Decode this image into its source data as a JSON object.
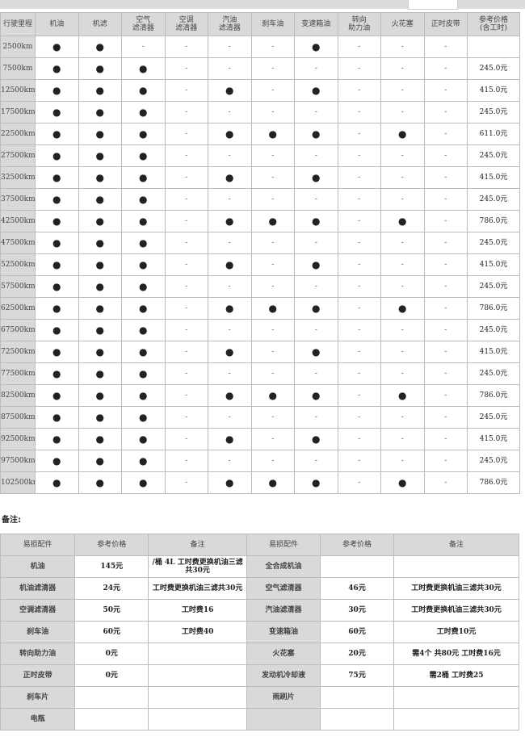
{
  "schedule": {
    "headers": [
      "行驶里程",
      "机油",
      "机滤",
      "空气\n滤清器",
      "空调\n滤清器",
      "汽油\n滤清器",
      "刹车油",
      "变速箱油",
      "转向\n助力油",
      "火花塞",
      "正时皮带",
      "参考价格\n(含工时)"
    ],
    "marks": {
      "yes": "●",
      "no": "-"
    },
    "rows": [
      {
        "km": "2500km",
        "items": [
          1,
          1,
          0,
          0,
          0,
          0,
          1,
          0,
          0,
          0
        ],
        "price": ""
      },
      {
        "km": "7500km",
        "items": [
          1,
          1,
          1,
          0,
          0,
          0,
          0,
          0,
          0,
          0
        ],
        "price": "245.0元"
      },
      {
        "km": "12500km",
        "items": [
          1,
          1,
          1,
          0,
          1,
          0,
          1,
          0,
          0,
          0
        ],
        "price": "415.0元"
      },
      {
        "km": "17500km",
        "items": [
          1,
          1,
          1,
          0,
          0,
          0,
          0,
          0,
          0,
          0
        ],
        "price": "245.0元"
      },
      {
        "km": "22500km",
        "items": [
          1,
          1,
          1,
          0,
          1,
          1,
          1,
          0,
          1,
          0
        ],
        "price": "611.0元"
      },
      {
        "km": "27500km",
        "items": [
          1,
          1,
          1,
          0,
          0,
          0,
          0,
          0,
          0,
          0
        ],
        "price": "245.0元"
      },
      {
        "km": "32500km",
        "items": [
          1,
          1,
          1,
          0,
          1,
          0,
          1,
          0,
          0,
          0
        ],
        "price": "415.0元"
      },
      {
        "km": "37500km",
        "items": [
          1,
          1,
          1,
          0,
          0,
          0,
          0,
          0,
          0,
          0
        ],
        "price": "245.0元"
      },
      {
        "km": "42500km",
        "items": [
          1,
          1,
          1,
          0,
          1,
          1,
          1,
          0,
          1,
          0
        ],
        "price": "786.0元"
      },
      {
        "km": "47500km",
        "items": [
          1,
          1,
          1,
          0,
          0,
          0,
          0,
          0,
          0,
          0
        ],
        "price": "245.0元"
      },
      {
        "km": "52500km",
        "items": [
          1,
          1,
          1,
          0,
          1,
          0,
          1,
          0,
          0,
          0
        ],
        "price": "415.0元"
      },
      {
        "km": "57500km",
        "items": [
          1,
          1,
          1,
          0,
          0,
          0,
          0,
          0,
          0,
          0
        ],
        "price": "245.0元"
      },
      {
        "km": "62500km",
        "items": [
          1,
          1,
          1,
          0,
          1,
          1,
          1,
          0,
          1,
          0
        ],
        "price": "786.0元"
      },
      {
        "km": "67500km",
        "items": [
          1,
          1,
          1,
          0,
          0,
          0,
          0,
          0,
          0,
          0
        ],
        "price": "245.0元"
      },
      {
        "km": "72500km",
        "items": [
          1,
          1,
          1,
          0,
          1,
          0,
          1,
          0,
          0,
          0
        ],
        "price": "415.0元"
      },
      {
        "km": "77500km",
        "items": [
          1,
          1,
          1,
          0,
          0,
          0,
          0,
          0,
          0,
          0
        ],
        "price": "245.0元"
      },
      {
        "km": "82500km",
        "items": [
          1,
          1,
          1,
          0,
          1,
          1,
          1,
          0,
          1,
          0
        ],
        "price": "786.0元"
      },
      {
        "km": "87500km",
        "items": [
          1,
          1,
          1,
          0,
          0,
          0,
          0,
          0,
          0,
          0
        ],
        "price": "245.0元"
      },
      {
        "km": "92500km",
        "items": [
          1,
          1,
          1,
          0,
          1,
          0,
          1,
          0,
          0,
          0
        ],
        "price": "415.0元"
      },
      {
        "km": "97500km",
        "items": [
          1,
          1,
          1,
          0,
          0,
          0,
          0,
          0,
          0,
          0
        ],
        "price": "245.0元"
      },
      {
        "km": "102500km",
        "items": [
          1,
          1,
          1,
          0,
          1,
          1,
          1,
          0,
          1,
          0
        ],
        "price": "786.0元"
      }
    ]
  },
  "note_label": "备注:",
  "parts": {
    "headers": [
      "易损配件",
      "参考价格",
      "备注",
      "易损配件",
      "参考价格",
      "备注"
    ],
    "rows": [
      [
        "机油",
        "145元",
        "/桶 4L 工时费更换机油三滤共30元",
        "全合成机油",
        "",
        ""
      ],
      [
        "机油滤清器",
        "24元",
        "工时费更换机油三滤共30元",
        "空气滤清器",
        "46元",
        "工时费更换机油三滤共30元"
      ],
      [
        "空调滤清器",
        "50元",
        "工时费16",
        "汽油滤清器",
        "30元",
        "工时费更换机油三滤共30元"
      ],
      [
        "刹车油",
        "60元",
        "工时费40",
        "变速箱油",
        "60元",
        "工时费10元"
      ],
      [
        "转向助力油",
        "0元",
        "",
        "火花塞",
        "20元",
        "需4个 共80元 工时费16元"
      ],
      [
        "正时皮带",
        "0元",
        "",
        "发动机冷却液",
        "75元",
        "需2桶 工时费25"
      ],
      [
        "刹车片",
        "",
        "",
        "雨刷片",
        "",
        ""
      ],
      [
        "电瓶",
        "",
        "",
        "",
        "",
        ""
      ]
    ]
  }
}
